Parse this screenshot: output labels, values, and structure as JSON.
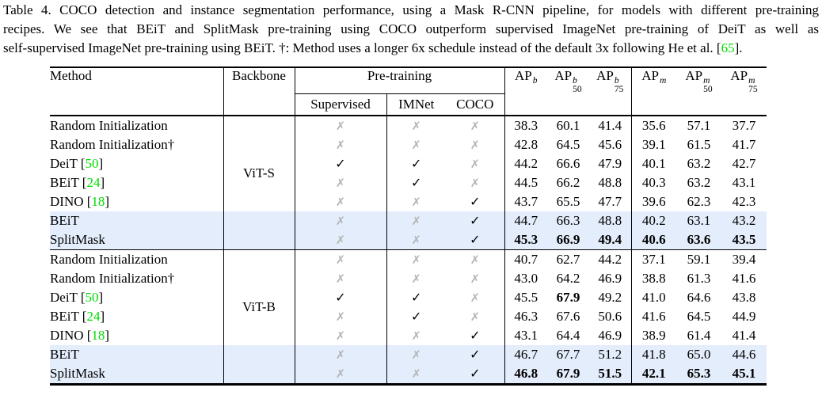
{
  "colors": {
    "citation-green": "#00dd00",
    "highlight-blue": "#e3edfb",
    "cross-gray": "#b4b4b4",
    "text-black": "#000000"
  },
  "caption": {
    "line1": "Table 4. COCO detection and instance segmentation performance, using a Mask R-CNN pipeline, for models with different pre-training",
    "line2": "recipes. We see that BEiT and SplitMask pre-training using COCO outperform supervised ImageNet pre-training of DeiT as well as",
    "line3_pre": "self-supervised ImageNet pre-training using BEiT. †: Method uses a longer 6x schedule instead of the default 3x following He et al. [",
    "line3_ref": "65",
    "line3_close": "]."
  },
  "table": {
    "header": {
      "method": "Method",
      "backbone": "Backbone",
      "pretraining": "Pre-training",
      "sub": [
        "Supervised",
        "IMNet",
        "COCO"
      ],
      "ap": [
        {
          "base": "AP",
          "sup": "b",
          "sub": ""
        },
        {
          "base": "AP",
          "sup": "b",
          "sub": "50"
        },
        {
          "base": "AP",
          "sup": "b",
          "sub": "75"
        },
        {
          "base": "AP",
          "sup": "m",
          "sub": ""
        },
        {
          "base": "AP",
          "sup": "m",
          "sub": "50"
        },
        {
          "base": "AP",
          "sup": "m",
          "sub": "75"
        }
      ]
    },
    "mark_glyphs": {
      "check": "✓",
      "cross": "✗"
    },
    "groups": [
      {
        "backbone": "ViT-S",
        "backbone_row": 3,
        "rows": [
          {
            "method": "Random Initialization",
            "ref": "",
            "marks": [
              "cross",
              "cross",
              "cross"
            ],
            "values": [
              "38.3",
              "60.1",
              "41.4",
              "35.6",
              "57.1",
              "37.7"
            ],
            "bold": [],
            "highlight": false
          },
          {
            "method": "Random Initialization†",
            "ref": "",
            "marks": [
              "cross",
              "cross",
              "cross"
            ],
            "values": [
              "42.8",
              "64.5",
              "45.6",
              "39.1",
              "61.5",
              "41.7"
            ],
            "bold": [],
            "highlight": false
          },
          {
            "method": "DeiT",
            "ref": "50",
            "marks": [
              "check",
              "check",
              "cross"
            ],
            "values": [
              "44.2",
              "66.6",
              "47.9",
              "40.1",
              "63.2",
              "42.7"
            ],
            "bold": [],
            "highlight": false
          },
          {
            "method": "BEiT",
            "ref": "24",
            "marks": [
              "cross",
              "check",
              "cross"
            ],
            "values": [
              "44.5",
              "66.2",
              "48.8",
              "40.3",
              "63.2",
              "43.1"
            ],
            "bold": [],
            "highlight": false
          },
          {
            "method": "DINO",
            "ref": "18",
            "marks": [
              "cross",
              "cross",
              "check"
            ],
            "values": [
              "43.7",
              "65.5",
              "47.7",
              "39.6",
              "62.3",
              "42.3"
            ],
            "bold": [],
            "highlight": false
          },
          {
            "method": "BEiT",
            "ref": "",
            "marks": [
              "cross",
              "cross",
              "check"
            ],
            "values": [
              "44.7",
              "66.3",
              "48.8",
              "40.2",
              "63.1",
              "43.2"
            ],
            "bold": [],
            "highlight": true
          },
          {
            "method": "SplitMask",
            "ref": "",
            "marks": [
              "cross",
              "cross",
              "check"
            ],
            "values": [
              "45.3",
              "66.9",
              "49.4",
              "40.6",
              "63.6",
              "43.5"
            ],
            "bold": [
              0,
              1,
              2,
              3,
              4,
              5
            ],
            "highlight": true
          }
        ]
      },
      {
        "backbone": "ViT-B",
        "backbone_row": 3,
        "rows": [
          {
            "method": "Random Initialization",
            "ref": "",
            "marks": [
              "cross",
              "cross",
              "cross"
            ],
            "values": [
              "40.7",
              "62.7",
              "44.2",
              "37.1",
              "59.1",
              "39.4"
            ],
            "bold": [],
            "highlight": false
          },
          {
            "method": "Random Initialization†",
            "ref": "",
            "marks": [
              "cross",
              "cross",
              "cross"
            ],
            "values": [
              "43.0",
              "64.2",
              "46.9",
              "38.8",
              "61.3",
              "41.6"
            ],
            "bold": [],
            "highlight": false
          },
          {
            "method": "DeiT",
            "ref": "50",
            "marks": [
              "check",
              "check",
              "cross"
            ],
            "values": [
              "45.5",
              "67.9",
              "49.2",
              "41.0",
              "64.6",
              "43.8"
            ],
            "bold": [
              1
            ],
            "highlight": false
          },
          {
            "method": "BEiT",
            "ref": "24",
            "marks": [
              "cross",
              "check",
              "cross"
            ],
            "values": [
              "46.3",
              "67.6",
              "50.6",
              "41.6",
              "64.5",
              "44.9"
            ],
            "bold": [],
            "highlight": false
          },
          {
            "method": "DINO",
            "ref": "18",
            "marks": [
              "cross",
              "cross",
              "check"
            ],
            "values": [
              "43.1",
              "64.4",
              "46.9",
              "38.9",
              "61.4",
              "41.4"
            ],
            "bold": [],
            "highlight": false
          },
          {
            "method": "BEiT",
            "ref": "",
            "marks": [
              "cross",
              "cross",
              "check"
            ],
            "values": [
              "46.7",
              "67.7",
              "51.2",
              "41.8",
              "65.0",
              "44.6"
            ],
            "bold": [],
            "highlight": true
          },
          {
            "method": "SplitMask",
            "ref": "",
            "marks": [
              "cross",
              "cross",
              "check"
            ],
            "values": [
              "46.8",
              "67.9",
              "51.5",
              "42.1",
              "65.3",
              "45.1"
            ],
            "bold": [
              0,
              1,
              2,
              3,
              4,
              5
            ],
            "highlight": true
          }
        ]
      }
    ]
  }
}
